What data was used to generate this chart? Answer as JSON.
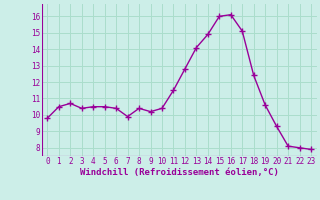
{
  "x": [
    0,
    1,
    2,
    3,
    4,
    5,
    6,
    7,
    8,
    9,
    10,
    11,
    12,
    13,
    14,
    15,
    16,
    17,
    18,
    19,
    20,
    21,
    22,
    23
  ],
  "y": [
    9.8,
    10.5,
    10.7,
    10.4,
    10.5,
    10.5,
    10.4,
    9.9,
    10.4,
    10.2,
    10.4,
    11.5,
    12.8,
    14.1,
    14.9,
    16.0,
    16.1,
    15.1,
    12.4,
    10.6,
    9.3,
    8.1,
    8.0,
    7.9
  ],
  "line_color": "#990099",
  "marker": "+",
  "marker_size": 4,
  "marker_lw": 1.0,
  "line_width": 1.0,
  "bg_color": "#cceee8",
  "grid_color": "#aaddcc",
  "xlabel": "Windchill (Refroidissement éolien,°C)",
  "ylim": [
    7.5,
    16.75
  ],
  "xlim": [
    -0.5,
    23.5
  ],
  "yticks": [
    8,
    9,
    10,
    11,
    12,
    13,
    14,
    15,
    16
  ],
  "xticks": [
    0,
    1,
    2,
    3,
    4,
    5,
    6,
    7,
    8,
    9,
    10,
    11,
    12,
    13,
    14,
    15,
    16,
    17,
    18,
    19,
    20,
    21,
    22,
    23
  ],
  "tick_label_size": 5.5,
  "xlabel_size": 6.5,
  "label_color": "#990099"
}
